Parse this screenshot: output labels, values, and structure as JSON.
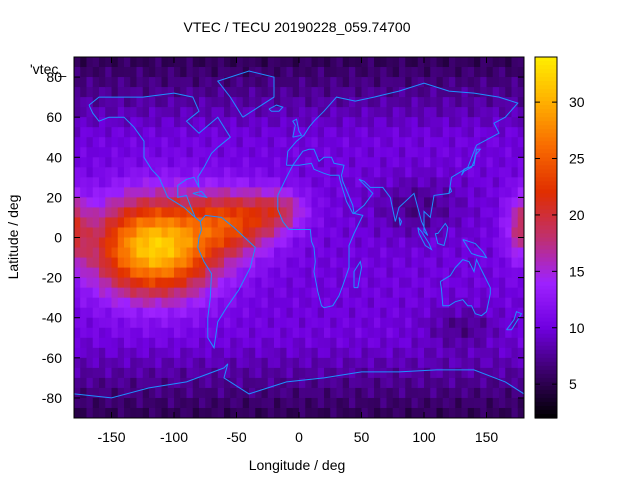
{
  "chart_data": {
    "type": "heatmap",
    "title": "VTEC / TECU 20190228_059.74700",
    "xlabel": "Longitude / deg",
    "ylabel": "Latitude / deg",
    "key_label": "'vtec_",
    "xlim": [
      -180,
      180
    ],
    "ylim": [
      -90,
      90
    ],
    "x_ticks": [
      -150,
      -100,
      -50,
      0,
      50,
      100,
      150
    ],
    "y_ticks": [
      80,
      60,
      40,
      20,
      0,
      -20,
      -40,
      -60,
      -80
    ],
    "colorbar": {
      "range": [
        2,
        34
      ],
      "ticks": [
        5,
        10,
        15,
        20,
        25,
        30
      ],
      "colormap": [
        "#000000",
        "#3a0068",
        "#7000e0",
        "#9e22ff",
        "#c0306e",
        "#e02e00",
        "#f86a00",
        "#ffb000",
        "#ffee00"
      ]
    },
    "features": [
      {
        "lon": -115,
        "lat": -5,
        "sig_lon": 35,
        "sig_lat": 17,
        "amp": 22
      },
      {
        "lon": -50,
        "lat": 8,
        "sig_lon": 25,
        "sig_lat": 11,
        "amp": 11
      },
      {
        "lon": -15,
        "lat": 14,
        "sig_lon": 15,
        "sig_lat": 7,
        "amp": 6
      },
      {
        "lon": 180,
        "lat": 5,
        "sig_lon": 10,
        "sig_lat": 12,
        "amp": 9
      },
      {
        "lon": -180,
        "lat": 5,
        "sig_lon": 8,
        "sig_lat": 12,
        "amp": 7
      },
      {
        "lon": 95,
        "lat": 15,
        "sig_lon": 25,
        "sig_lat": 10,
        "amp": -3
      },
      {
        "lon": 130,
        "lat": -45,
        "sig_lon": 20,
        "sig_lat": 7,
        "amp": -3
      }
    ],
    "base_value": 10
  }
}
